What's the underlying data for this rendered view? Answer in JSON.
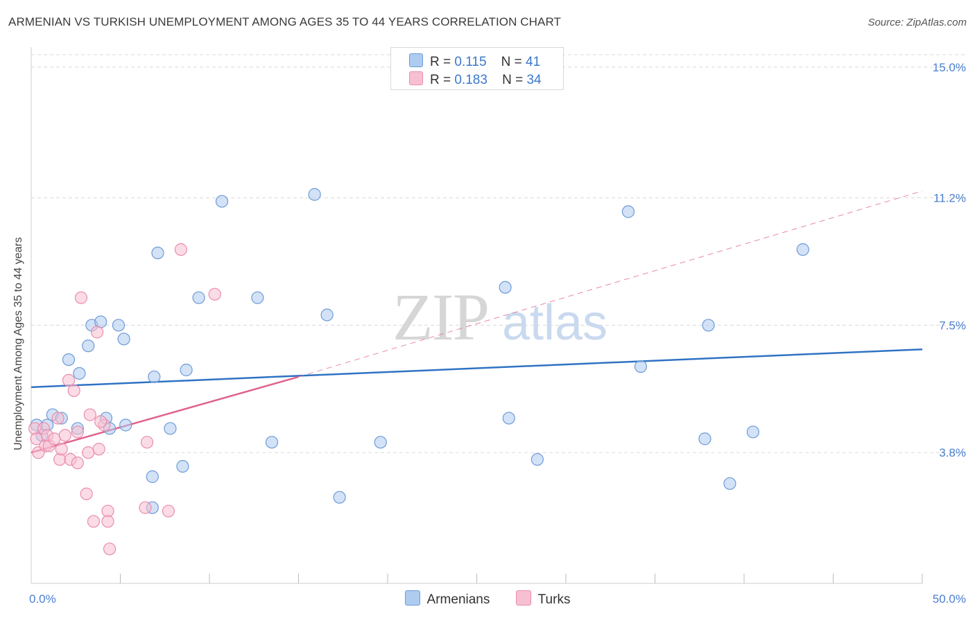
{
  "title": "ARMENIAN VS TURKISH UNEMPLOYMENT AMONG AGES 35 TO 44 YEARS CORRELATION CHART",
  "source": "Source: ZipAtlas.com",
  "watermark": {
    "zip": "ZIP",
    "atlas": "atlas"
  },
  "legend": {
    "armenians": {
      "r_label": "R =",
      "r_value": "0.115",
      "n_label": "N =",
      "n_value": "41"
    },
    "turks": {
      "r_label": "R =",
      "r_value": "0.183",
      "n_label": "N =",
      "n_value": "34"
    }
  },
  "colors": {
    "armenians_fill": "#aecbf0",
    "armenians_stroke": "#6c9bd6",
    "armenians_line": "#2f72c4",
    "turks_fill": "#f7c0d2",
    "turks_stroke": "#e98cab",
    "turks_line": "#e0628f",
    "tick_label": "#4a7fcf",
    "grid": "#d9d9d9"
  },
  "chart_data": {
    "type": "scatter",
    "title": "ARMENIAN VS TURKISH UNEMPLOYMENT AMONG AGES 35 TO 44 YEARS CORRELATION CHART",
    "xlabel": "",
    "ylabel": "Unemployment Among Ages 35 to 44 years",
    "xlim": [
      0,
      50
    ],
    "ylim": [
      0,
      15.5
    ],
    "x_tick_labels": [
      "0.0%",
      "50.0%"
    ],
    "y_ticks": [
      3.8,
      7.5,
      11.2,
      15.0
    ],
    "y_tick_labels": [
      "3.8%",
      "7.5%",
      "11.2%",
      "15.0%"
    ],
    "grid": true,
    "legend_position": "top-center",
    "series": [
      {
        "name": "Armenians",
        "points": [
          [
            0.3,
            4.6
          ],
          [
            0.6,
            4.3
          ],
          [
            0.9,
            4.6
          ],
          [
            1.2,
            4.9
          ],
          [
            1.7,
            4.8
          ],
          [
            2.1,
            6.5
          ],
          [
            2.6,
            4.5
          ],
          [
            2.7,
            6.1
          ],
          [
            3.2,
            6.9
          ],
          [
            3.4,
            7.5
          ],
          [
            3.9,
            7.6
          ],
          [
            4.2,
            4.8
          ],
          [
            4.4,
            4.5
          ],
          [
            4.9,
            7.5
          ],
          [
            5.2,
            7.1
          ],
          [
            5.3,
            4.6
          ],
          [
            6.8,
            2.2
          ],
          [
            6.8,
            3.1
          ],
          [
            6.9,
            6.0
          ],
          [
            7.1,
            9.6
          ],
          [
            7.8,
            4.5
          ],
          [
            8.5,
            3.4
          ],
          [
            8.7,
            6.2
          ],
          [
            9.4,
            8.3
          ],
          [
            10.7,
            11.1
          ],
          [
            12.7,
            8.3
          ],
          [
            13.5,
            4.1
          ],
          [
            15.9,
            11.3
          ],
          [
            16.6,
            7.8
          ],
          [
            17.3,
            2.5
          ],
          [
            19.6,
            4.1
          ],
          [
            26.6,
            8.6
          ],
          [
            26.8,
            4.8
          ],
          [
            28.4,
            3.6
          ],
          [
            33.5,
            10.8
          ],
          [
            34.2,
            6.3
          ],
          [
            37.8,
            4.2
          ],
          [
            38.0,
            7.5
          ],
          [
            39.2,
            2.9
          ],
          [
            40.5,
            4.4
          ],
          [
            43.3,
            9.7
          ]
        ]
      },
      {
        "name": "Turks",
        "points": [
          [
            0.2,
            4.5
          ],
          [
            0.3,
            4.2
          ],
          [
            0.4,
            3.8
          ],
          [
            0.7,
            4.5
          ],
          [
            0.8,
            4.0
          ],
          [
            0.9,
            4.3
          ],
          [
            1.0,
            4.0
          ],
          [
            1.3,
            4.2
          ],
          [
            1.5,
            4.8
          ],
          [
            1.6,
            3.6
          ],
          [
            1.7,
            3.9
          ],
          [
            1.9,
            4.3
          ],
          [
            2.1,
            5.9
          ],
          [
            2.2,
            3.6
          ],
          [
            2.4,
            5.6
          ],
          [
            2.6,
            4.4
          ],
          [
            2.6,
            3.5
          ],
          [
            2.8,
            8.3
          ],
          [
            3.1,
            2.6
          ],
          [
            3.2,
            3.8
          ],
          [
            3.3,
            4.9
          ],
          [
            3.5,
            1.8
          ],
          [
            3.7,
            7.3
          ],
          [
            3.8,
            3.9
          ],
          [
            4.1,
            4.6
          ],
          [
            4.3,
            2.1
          ],
          [
            4.3,
            1.8
          ],
          [
            4.4,
            1.0
          ],
          [
            6.4,
            2.2
          ],
          [
            6.5,
            4.1
          ],
          [
            7.7,
            2.1
          ],
          [
            8.4,
            9.7
          ],
          [
            10.3,
            8.4
          ],
          [
            3.9,
            4.7
          ]
        ]
      }
    ],
    "trend_lines": [
      {
        "series": "Armenians",
        "style": "solid",
        "from": [
          0,
          5.7
        ],
        "to": [
          50,
          6.8
        ]
      },
      {
        "series": "Turks",
        "style": "solid",
        "from": [
          0,
          3.8
        ],
        "to": [
          15,
          6.0
        ]
      },
      {
        "series": "Turks",
        "style": "dashed",
        "from": [
          15,
          6.0
        ],
        "to": [
          50,
          11.4
        ]
      }
    ]
  }
}
